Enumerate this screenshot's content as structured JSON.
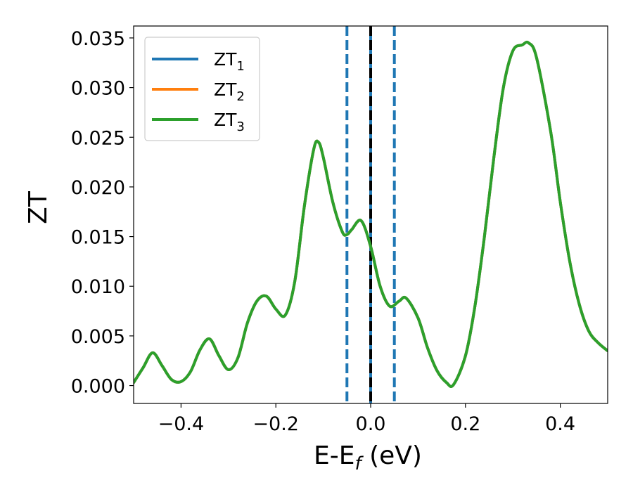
{
  "chart_data": {
    "type": "line",
    "xlabel": "E-E",
    "xlabel_sub": "f",
    "xlabel_suffix": " (eV)",
    "ylabel": "ZT",
    "xlim": [
      -0.5,
      0.5
    ],
    "ylim": [
      -0.0018,
      0.0362
    ],
    "xticks": [
      -0.4,
      -0.2,
      0.0,
      0.2,
      0.4
    ],
    "xtick_labels": [
      "−0.4",
      "−0.2",
      "0.0",
      "0.2",
      "0.4"
    ],
    "yticks": [
      0.0,
      0.005,
      0.01,
      0.015,
      0.02,
      0.025,
      0.03,
      0.035
    ],
    "ytick_labels": [
      "0.000",
      "0.005",
      "0.010",
      "0.015",
      "0.020",
      "0.025",
      "0.030",
      "0.035"
    ],
    "legend_position": "top-left",
    "grid": false,
    "x": [
      -0.5,
      -0.48,
      -0.46,
      -0.44,
      -0.42,
      -0.4,
      -0.38,
      -0.36,
      -0.34,
      -0.32,
      -0.3,
      -0.28,
      -0.26,
      -0.24,
      -0.22,
      -0.2,
      -0.18,
      -0.16,
      -0.14,
      -0.12,
      -0.11,
      -0.1,
      -0.08,
      -0.06,
      -0.05,
      -0.04,
      -0.02,
      0.0,
      0.02,
      0.04,
      0.06,
      0.075,
      0.1,
      0.12,
      0.14,
      0.16,
      0.175,
      0.2,
      0.22,
      0.24,
      0.26,
      0.28,
      0.3,
      0.32,
      0.333,
      0.35,
      0.38,
      0.4,
      0.42,
      0.44,
      0.46,
      0.48,
      0.5
    ],
    "series": [
      {
        "name": "ZT",
        "name_sub": "1",
        "color": "#1f77b4",
        "y": [
          0.0003,
          0.0018,
          0.0033,
          0.002,
          0.0006,
          0.0004,
          0.0014,
          0.0036,
          0.0047,
          0.003,
          0.0016,
          0.0028,
          0.0063,
          0.0085,
          0.009,
          0.0077,
          0.0071,
          0.0105,
          0.018,
          0.0238,
          0.0245,
          0.023,
          0.0185,
          0.0155,
          0.0152,
          0.0157,
          0.0166,
          0.014,
          0.01,
          0.008,
          0.0085,
          0.0088,
          0.0068,
          0.0038,
          0.0015,
          0.0003,
          0.0001,
          0.003,
          0.008,
          0.015,
          0.023,
          0.03,
          0.0337,
          0.0343,
          0.0345,
          0.033,
          0.0255,
          0.0185,
          0.0125,
          0.0082,
          0.0055,
          0.0043,
          0.0035
        ]
      },
      {
        "name": "ZT",
        "name_sub": "2",
        "color": "#ff7f0e",
        "y": [
          0.0003,
          0.0018,
          0.0033,
          0.002,
          0.0006,
          0.0004,
          0.0014,
          0.0036,
          0.0047,
          0.003,
          0.0016,
          0.0028,
          0.0063,
          0.0085,
          0.009,
          0.0077,
          0.0071,
          0.0105,
          0.018,
          0.0238,
          0.0245,
          0.023,
          0.0185,
          0.0155,
          0.0152,
          0.0157,
          0.0166,
          0.014,
          0.01,
          0.008,
          0.0085,
          0.0088,
          0.0068,
          0.0038,
          0.0015,
          0.0003,
          0.0001,
          0.003,
          0.008,
          0.015,
          0.023,
          0.03,
          0.0337,
          0.0343,
          0.0345,
          0.033,
          0.0255,
          0.0185,
          0.0125,
          0.0082,
          0.0055,
          0.0043,
          0.0035
        ]
      },
      {
        "name": "ZT",
        "name_sub": "3",
        "color": "#2ca02c",
        "y": [
          0.0003,
          0.0018,
          0.0033,
          0.002,
          0.0006,
          0.0004,
          0.0014,
          0.0036,
          0.0047,
          0.003,
          0.0016,
          0.0028,
          0.0063,
          0.0085,
          0.009,
          0.0077,
          0.0071,
          0.0105,
          0.018,
          0.0238,
          0.0245,
          0.023,
          0.0185,
          0.0155,
          0.0152,
          0.0157,
          0.0166,
          0.014,
          0.01,
          0.008,
          0.0085,
          0.0088,
          0.0068,
          0.0038,
          0.0015,
          0.0003,
          0.0001,
          0.003,
          0.008,
          0.015,
          0.023,
          0.03,
          0.0337,
          0.0343,
          0.0345,
          0.033,
          0.0255,
          0.0185,
          0.0125,
          0.0082,
          0.0055,
          0.0043,
          0.0035
        ]
      }
    ],
    "vlines": [
      {
        "x": -0.05,
        "style": "dashed",
        "color": "#1f77b4"
      },
      {
        "x": 0.0,
        "style": "solid",
        "color": "#1f77b4"
      },
      {
        "x": 0.0,
        "style": "dashed",
        "color": "#000000"
      },
      {
        "x": 0.05,
        "style": "dashed",
        "color": "#1f77b4"
      }
    ]
  }
}
